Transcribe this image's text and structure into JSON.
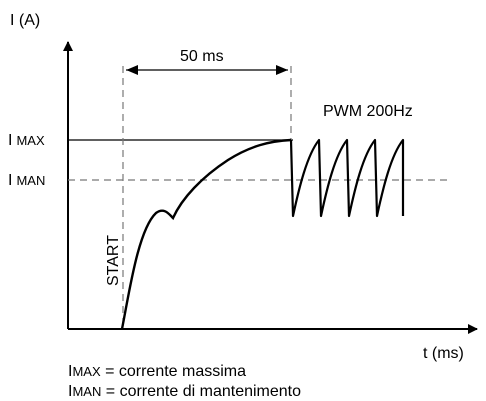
{
  "axes": {
    "y_label": "I (A)",
    "x_label": "t (ms)"
  },
  "levels": {
    "imax_prefix": "I",
    "imax_suffix": "MAX",
    "iman_prefix": "I",
    "iman_suffix": "MAN"
  },
  "annotations": {
    "duration": "50 ms",
    "pwm": "PWM 200Hz",
    "start": "START"
  },
  "legend": {
    "imax_prefix": "I",
    "imax_suffix": "MAX",
    "imax_text": " = corrente massima",
    "iman_prefix": "I",
    "iman_suffix": "MAN",
    "iman_text": " = corrente di mantenimento"
  },
  "colors": {
    "stroke": "#000000",
    "dashed": "#777777"
  }
}
